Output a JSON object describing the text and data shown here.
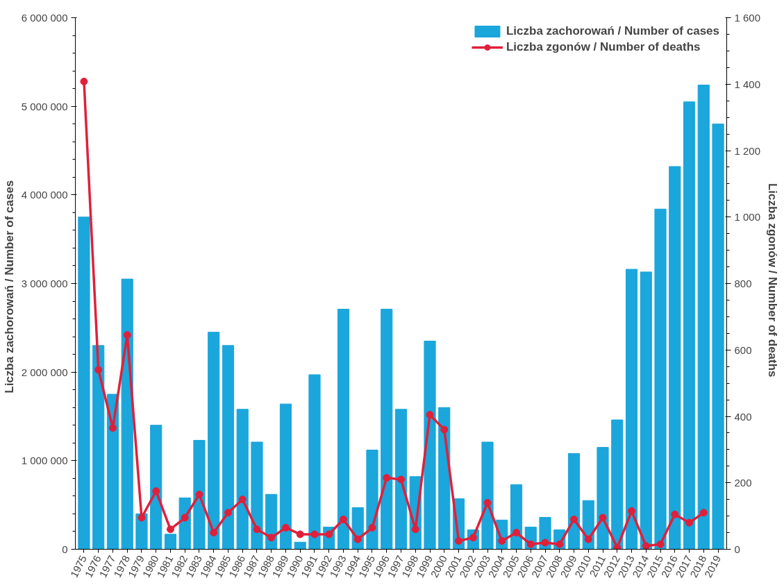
{
  "chart_data": {
    "type": "bar",
    "xlabel": null,
    "ylabel": "Liczba zachorowań  /  Number of cases",
    "y2label": "Liczba zgonów  /  Number of deaths",
    "categories": [
      "1975",
      "1976",
      "1977",
      "1978",
      "1979",
      "1980",
      "1981",
      "1982",
      "1983",
      "1984",
      "1985",
      "1986",
      "1987",
      "1988",
      "1989",
      "1990",
      "1991",
      "1992",
      "1993",
      "1994",
      "1995",
      "1996",
      "1997",
      "1998",
      "1999",
      "2000",
      "2001",
      "2002",
      "2003",
      "2004",
      "2005",
      "2006",
      "2007",
      "2008",
      "2009",
      "2010",
      "2011",
      "2012",
      "2013",
      "2014",
      "2015",
      "2016",
      "2017",
      "2018",
      "2019"
    ],
    "series": [
      {
        "name": "Liczba zachorowań / Number of cases",
        "color": "#1ba6dc",
        "values": [
          3750000,
          2300000,
          1750000,
          3050000,
          400000,
          1400000,
          170000,
          580000,
          1230000,
          2450000,
          2300000,
          1580000,
          1210000,
          620000,
          1640000,
          80000,
          1970000,
          250000,
          2710000,
          470000,
          1120000,
          2710000,
          1580000,
          820000,
          2350000,
          1600000,
          570000,
          220000,
          1210000,
          330000,
          730000,
          250000,
          360000,
          220000,
          1080000,
          550000,
          1150000,
          1460000,
          3160000,
          3130000,
          3840000,
          4320000,
          5050000,
          5240000,
          4800000
        ]
      },
      {
        "name": "Liczba zgonów / Number of deaths",
        "type": "line",
        "axis": "y2",
        "color": "#e0203a",
        "marker": "circle",
        "line_style": "solid",
        "values": [
          1408,
          540,
          365,
          645,
          95,
          175,
          60,
          95,
          165,
          50,
          110,
          150,
          60,
          35,
          65,
          45,
          45,
          45,
          90,
          30,
          65,
          215,
          210,
          60,
          405,
          360,
          25,
          35,
          140,
          25,
          50,
          15,
          20,
          15,
          90,
          30,
          95,
          5,
          115,
          10,
          15,
          105,
          80,
          110,
          null
        ]
      }
    ],
    "ylim": [
      0,
      6000000
    ],
    "yticks": [
      {
        "value": 0,
        "label": "0"
      },
      {
        "value": 1000000,
        "label": "1 000 000"
      },
      {
        "value": 2000000,
        "label": "2 000 000"
      },
      {
        "value": 3000000,
        "label": "3 000 000"
      },
      {
        "value": 4000000,
        "label": "4 000 000"
      },
      {
        "value": 5000000,
        "label": "5 000 000"
      },
      {
        "value": 6000000,
        "label": "6 000 000"
      }
    ],
    "y2lim": [
      0,
      1600
    ],
    "y2ticks": [
      0,
      200,
      400,
      600,
      800,
      {
        "value": 1000,
        "label": "1 000"
      },
      {
        "value": 1200,
        "label": "1 200"
      },
      {
        "value": 1400,
        "label": "1 400"
      },
      {
        "value": 1600,
        "label": "1 600"
      }
    ],
    "grid": false,
    "legend": "top right"
  }
}
